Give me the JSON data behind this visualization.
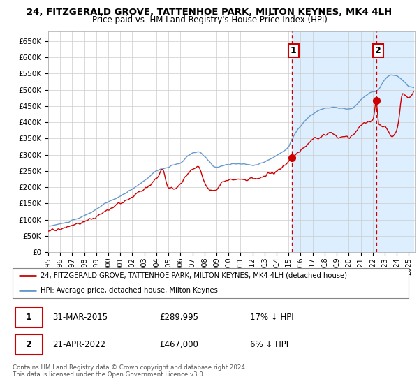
{
  "title": "24, FITZGERALD GROVE, TATTENHOE PARK, MILTON KEYNES, MK4 4LH",
  "subtitle": "Price paid vs. HM Land Registry's House Price Index (HPI)",
  "title_fontsize": 9.5,
  "subtitle_fontsize": 8.5,
  "ylabel_ticks": [
    "£0",
    "£50K",
    "£100K",
    "£150K",
    "£200K",
    "£250K",
    "£300K",
    "£350K",
    "£400K",
    "£450K",
    "£500K",
    "£550K",
    "£600K",
    "£650K"
  ],
  "ytick_values": [
    0,
    50000,
    100000,
    150000,
    200000,
    250000,
    300000,
    350000,
    400000,
    450000,
    500000,
    550000,
    600000,
    650000
  ],
  "ylim": [
    0,
    680000
  ],
  "xlim_start": 1995.0,
  "xlim_end": 2025.5,
  "xtick_years": [
    1995,
    1996,
    1997,
    1998,
    1999,
    2000,
    2001,
    2002,
    2003,
    2004,
    2005,
    2006,
    2007,
    2008,
    2009,
    2010,
    2011,
    2012,
    2013,
    2014,
    2015,
    2016,
    2017,
    2018,
    2019,
    2020,
    2021,
    2022,
    2023,
    2024,
    2025
  ],
  "hpi_color": "#6699cc",
  "price_color": "#cc0000",
  "vline_color": "#cc0000",
  "fill_color": "#ddeeff",
  "purchase1_x": 2015.25,
  "purchase1_y": 289995,
  "purchase2_x": 2022.3,
  "purchase2_y": 467000,
  "legend_label1": "24, FITZGERALD GROVE, TATTENHOE PARK, MILTON KEYNES, MK4 4LH (detached house)",
  "legend_label2": "HPI: Average price, detached house, Milton Keynes",
  "annotation1_label": "1",
  "annotation2_label": "2",
  "annotation1_date": "31-MAR-2015",
  "annotation1_price": "£289,995",
  "annotation1_hpi": "17% ↓ HPI",
  "annotation2_date": "21-APR-2022",
  "annotation2_price": "£467,000",
  "annotation2_hpi": "6% ↓ HPI",
  "footer1": "Contains HM Land Registry data © Crown copyright and database right 2024.",
  "footer2": "This data is licensed under the Open Government Licence v3.0.",
  "bg_color": "#ffffff",
  "grid_color": "#cccccc",
  "hpi_linewidth": 1.0,
  "price_linewidth": 1.0
}
